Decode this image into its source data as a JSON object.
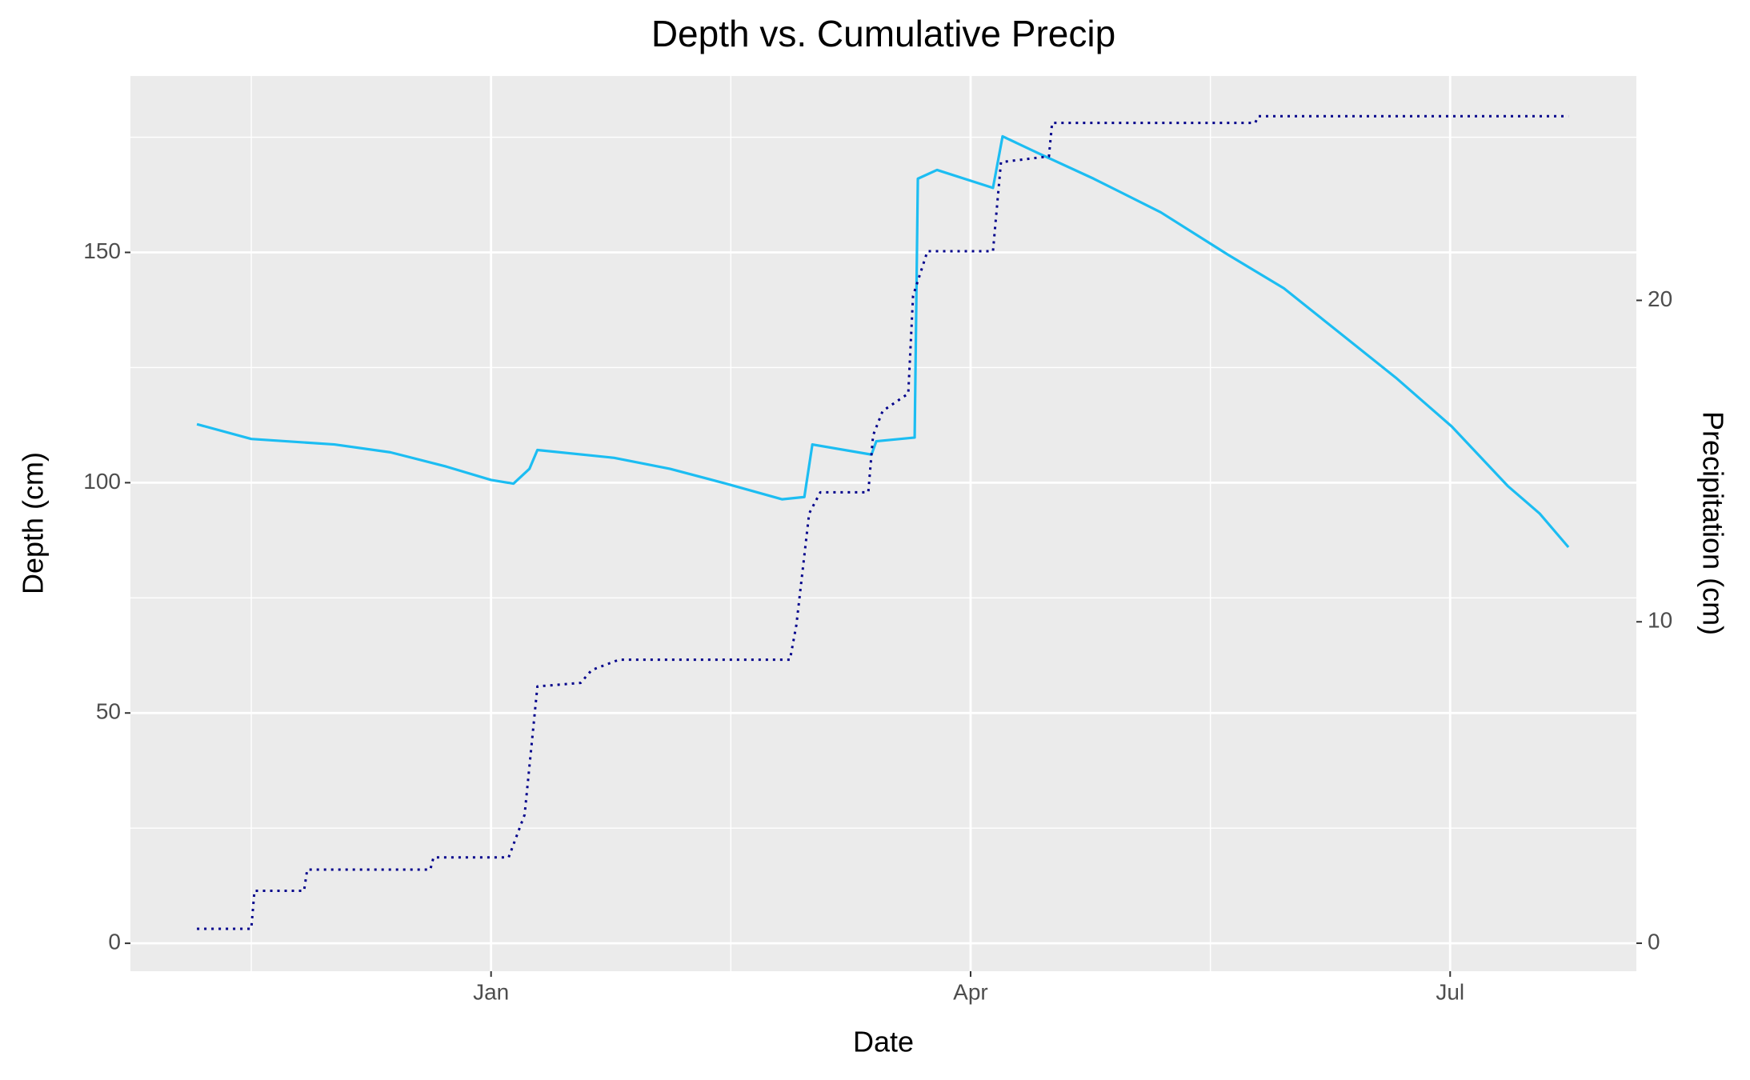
{
  "chart_data": {
    "type": "line",
    "title": "Depth vs. Cumulative Precip",
    "x_label": "Date",
    "y_label": "Depth (cm)",
    "y2_label": "Precipitation (cm)",
    "grid": true,
    "xlim": [
      -2.256,
      7.165
    ],
    "xticks": [
      {
        "value": 0,
        "label": "Jan"
      },
      {
        "value": 3,
        "label": "Apr"
      },
      {
        "value": 6,
        "label": "Jul"
      }
    ],
    "ylim": [
      -6.06,
      188.3
    ],
    "yticks": [
      0,
      50,
      100,
      150
    ],
    "y2lim": [
      -0.87,
      26.98
    ],
    "y2ticks": [
      0,
      10,
      20
    ],
    "series": [
      {
        "name": "Depth",
        "color": "#1cbdf2",
        "style": "solid",
        "x": [
          -1.84,
          -1.5,
          -0.98,
          -0.63,
          -0.28,
          0,
          0.14,
          0.24,
          0.29,
          0.77,
          1.12,
          1.47,
          1.82,
          1.96,
          2.01,
          2.38,
          2.41,
          2.65,
          2.67,
          2.79,
          3.14,
          3.2,
          3.42,
          3.77,
          4.19,
          4.61,
          4.96,
          5.31,
          5.66,
          6.01,
          6.36,
          6.56,
          6.74
        ],
        "values": [
          112.7,
          109.5,
          108.3,
          106.6,
          103.5,
          100.6,
          99.8,
          103,
          107.1,
          105.4,
          103,
          99.8,
          96.4,
          96.9,
          108.3,
          106.1,
          109,
          109.8,
          166,
          167.9,
          164,
          175.2,
          171.6,
          166,
          158.7,
          149.5,
          142.2,
          132.5,
          122.8,
          112.2,
          99.3,
          93.3,
          86
        ]
      },
      {
        "name": "Precipitation",
        "color": "#00008b",
        "style": "dotted",
        "axis": "y2",
        "x": [
          -1.84,
          -1.5,
          -1.48,
          -1.17,
          -1.15,
          -0.38,
          -0.36,
          0.11,
          0.21,
          0.29,
          0.56,
          0.63,
          0.8,
          1.87,
          1.91,
          1.99,
          2.06,
          2.36,
          2.39,
          2.45,
          2.61,
          2.64,
          2.73,
          3.14,
          3.19,
          3.49,
          3.51,
          4.78,
          4.8,
          6.74
        ],
        "values": [
          0.45,
          0.45,
          1.63,
          1.63,
          2.29,
          2.29,
          2.67,
          2.67,
          4.0,
          7.99,
          8.1,
          8.5,
          8.82,
          8.82,
          9.9,
          13.37,
          14.03,
          14.03,
          15.8,
          16.56,
          17.1,
          20.14,
          21.53,
          21.53,
          24.3,
          24.48,
          25.52,
          25.52,
          25.73,
          25.73
        ]
      }
    ]
  }
}
